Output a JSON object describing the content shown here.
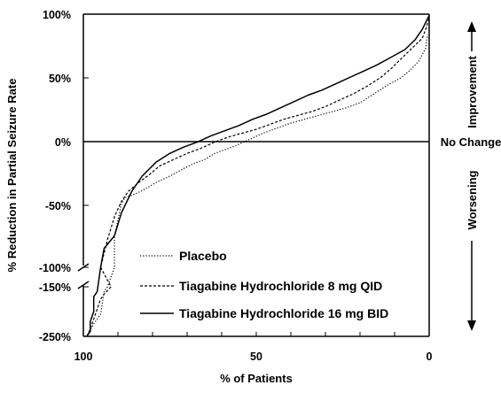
{
  "chart_data": {
    "type": "line",
    "xlabel": "% of Patients",
    "ylabel": "% Reduction in Partial Seizure Rate",
    "x_ticks": [
      "100",
      "50",
      "0"
    ],
    "y_ticks_upper": [
      "100%",
      "50%",
      "0%",
      "-50%",
      "-100%"
    ],
    "y_ticks_lower": [
      "-150%",
      "-250%"
    ],
    "xlim": [
      100,
      0
    ],
    "ylim_upper": [
      -100,
      100
    ],
    "ylim_lower": [
      -250,
      -150
    ],
    "x_reversed": true,
    "axis_break": true,
    "right_labels": {
      "improvement": "Improvement",
      "no_change": "No Change",
      "worsening": "Worsening"
    },
    "legend_position": "lower-left (inside plot)",
    "series": [
      {
        "name": "Placebo",
        "style": "dotted",
        "points": [
          [
            99,
            -250
          ],
          [
            97,
            -225
          ],
          [
            95,
            -205
          ],
          [
            94,
            -160
          ],
          [
            93,
            -150
          ],
          [
            91,
            -100
          ],
          [
            91,
            -75
          ],
          [
            89,
            -50
          ],
          [
            88,
            -45
          ],
          [
            85,
            -42
          ],
          [
            82,
            -38
          ],
          [
            79,
            -33
          ],
          [
            75,
            -28
          ],
          [
            71,
            -22
          ],
          [
            68,
            -18
          ],
          [
            65,
            -15
          ],
          [
            62,
            -10
          ],
          [
            59,
            -7
          ],
          [
            56,
            -4
          ],
          [
            52,
            1
          ],
          [
            48,
            6
          ],
          [
            44,
            10
          ],
          [
            40,
            14
          ],
          [
            36,
            17
          ],
          [
            32,
            20
          ],
          [
            28,
            23
          ],
          [
            24,
            26
          ],
          [
            20,
            30
          ],
          [
            16,
            37
          ],
          [
            12,
            44
          ],
          [
            8,
            50
          ],
          [
            5,
            57
          ],
          [
            3,
            63
          ],
          [
            1,
            73
          ],
          [
            0.5,
            84
          ]
        ]
      },
      {
        "name": "Tiagabine Hydrochloride 8 mg QID",
        "style": "dashed",
        "points": [
          [
            99,
            -250
          ],
          [
            98,
            -235
          ],
          [
            97,
            -215
          ],
          [
            95,
            -175
          ],
          [
            94,
            -165
          ],
          [
            92,
            -150
          ],
          [
            95,
            -100
          ],
          [
            93,
            -78
          ],
          [
            91,
            -60
          ],
          [
            89,
            -48
          ],
          [
            87,
            -40
          ],
          [
            84,
            -33
          ],
          [
            81,
            -27
          ],
          [
            78,
            -20
          ],
          [
            74,
            -15
          ],
          [
            70,
            -10
          ],
          [
            66,
            -6
          ],
          [
            62,
            -1
          ],
          [
            58,
            3
          ],
          [
            54,
            6
          ],
          [
            50,
            9
          ],
          [
            46,
            13
          ],
          [
            42,
            17
          ],
          [
            38,
            20
          ],
          [
            34,
            23
          ],
          [
            30,
            27
          ],
          [
            26,
            32
          ],
          [
            22,
            37
          ],
          [
            18,
            43
          ],
          [
            14,
            50
          ],
          [
            11,
            57
          ],
          [
            8,
            65
          ],
          [
            5,
            73
          ],
          [
            2,
            81
          ],
          [
            1,
            88
          ],
          [
            0,
            97
          ]
        ]
      },
      {
        "name": "Tiagabine Hydrochloride 16 mg BID",
        "style": "solid",
        "points": [
          [
            99,
            -250
          ],
          [
            98,
            -240
          ],
          [
            98,
            -220
          ],
          [
            97,
            -200
          ],
          [
            97,
            -170
          ],
          [
            96,
            -160
          ],
          [
            95,
            -100
          ],
          [
            94,
            -85
          ],
          [
            91,
            -75
          ],
          [
            89,
            -57
          ],
          [
            86,
            -40
          ],
          [
            83,
            -28
          ],
          [
            79,
            -17
          ],
          [
            75,
            -10
          ],
          [
            71,
            -5
          ],
          [
            67,
            -1
          ],
          [
            63,
            4
          ],
          [
            59,
            8
          ],
          [
            55,
            12
          ],
          [
            51,
            17
          ],
          [
            47,
            21
          ],
          [
            43,
            26
          ],
          [
            39,
            31
          ],
          [
            35,
            36
          ],
          [
            31,
            40
          ],
          [
            27,
            45
          ],
          [
            23,
            50
          ],
          [
            19,
            55
          ],
          [
            15,
            60
          ],
          [
            11,
            66
          ],
          [
            7,
            72
          ],
          [
            4,
            80
          ],
          [
            2,
            88
          ],
          [
            0,
            99
          ]
        ]
      }
    ]
  }
}
